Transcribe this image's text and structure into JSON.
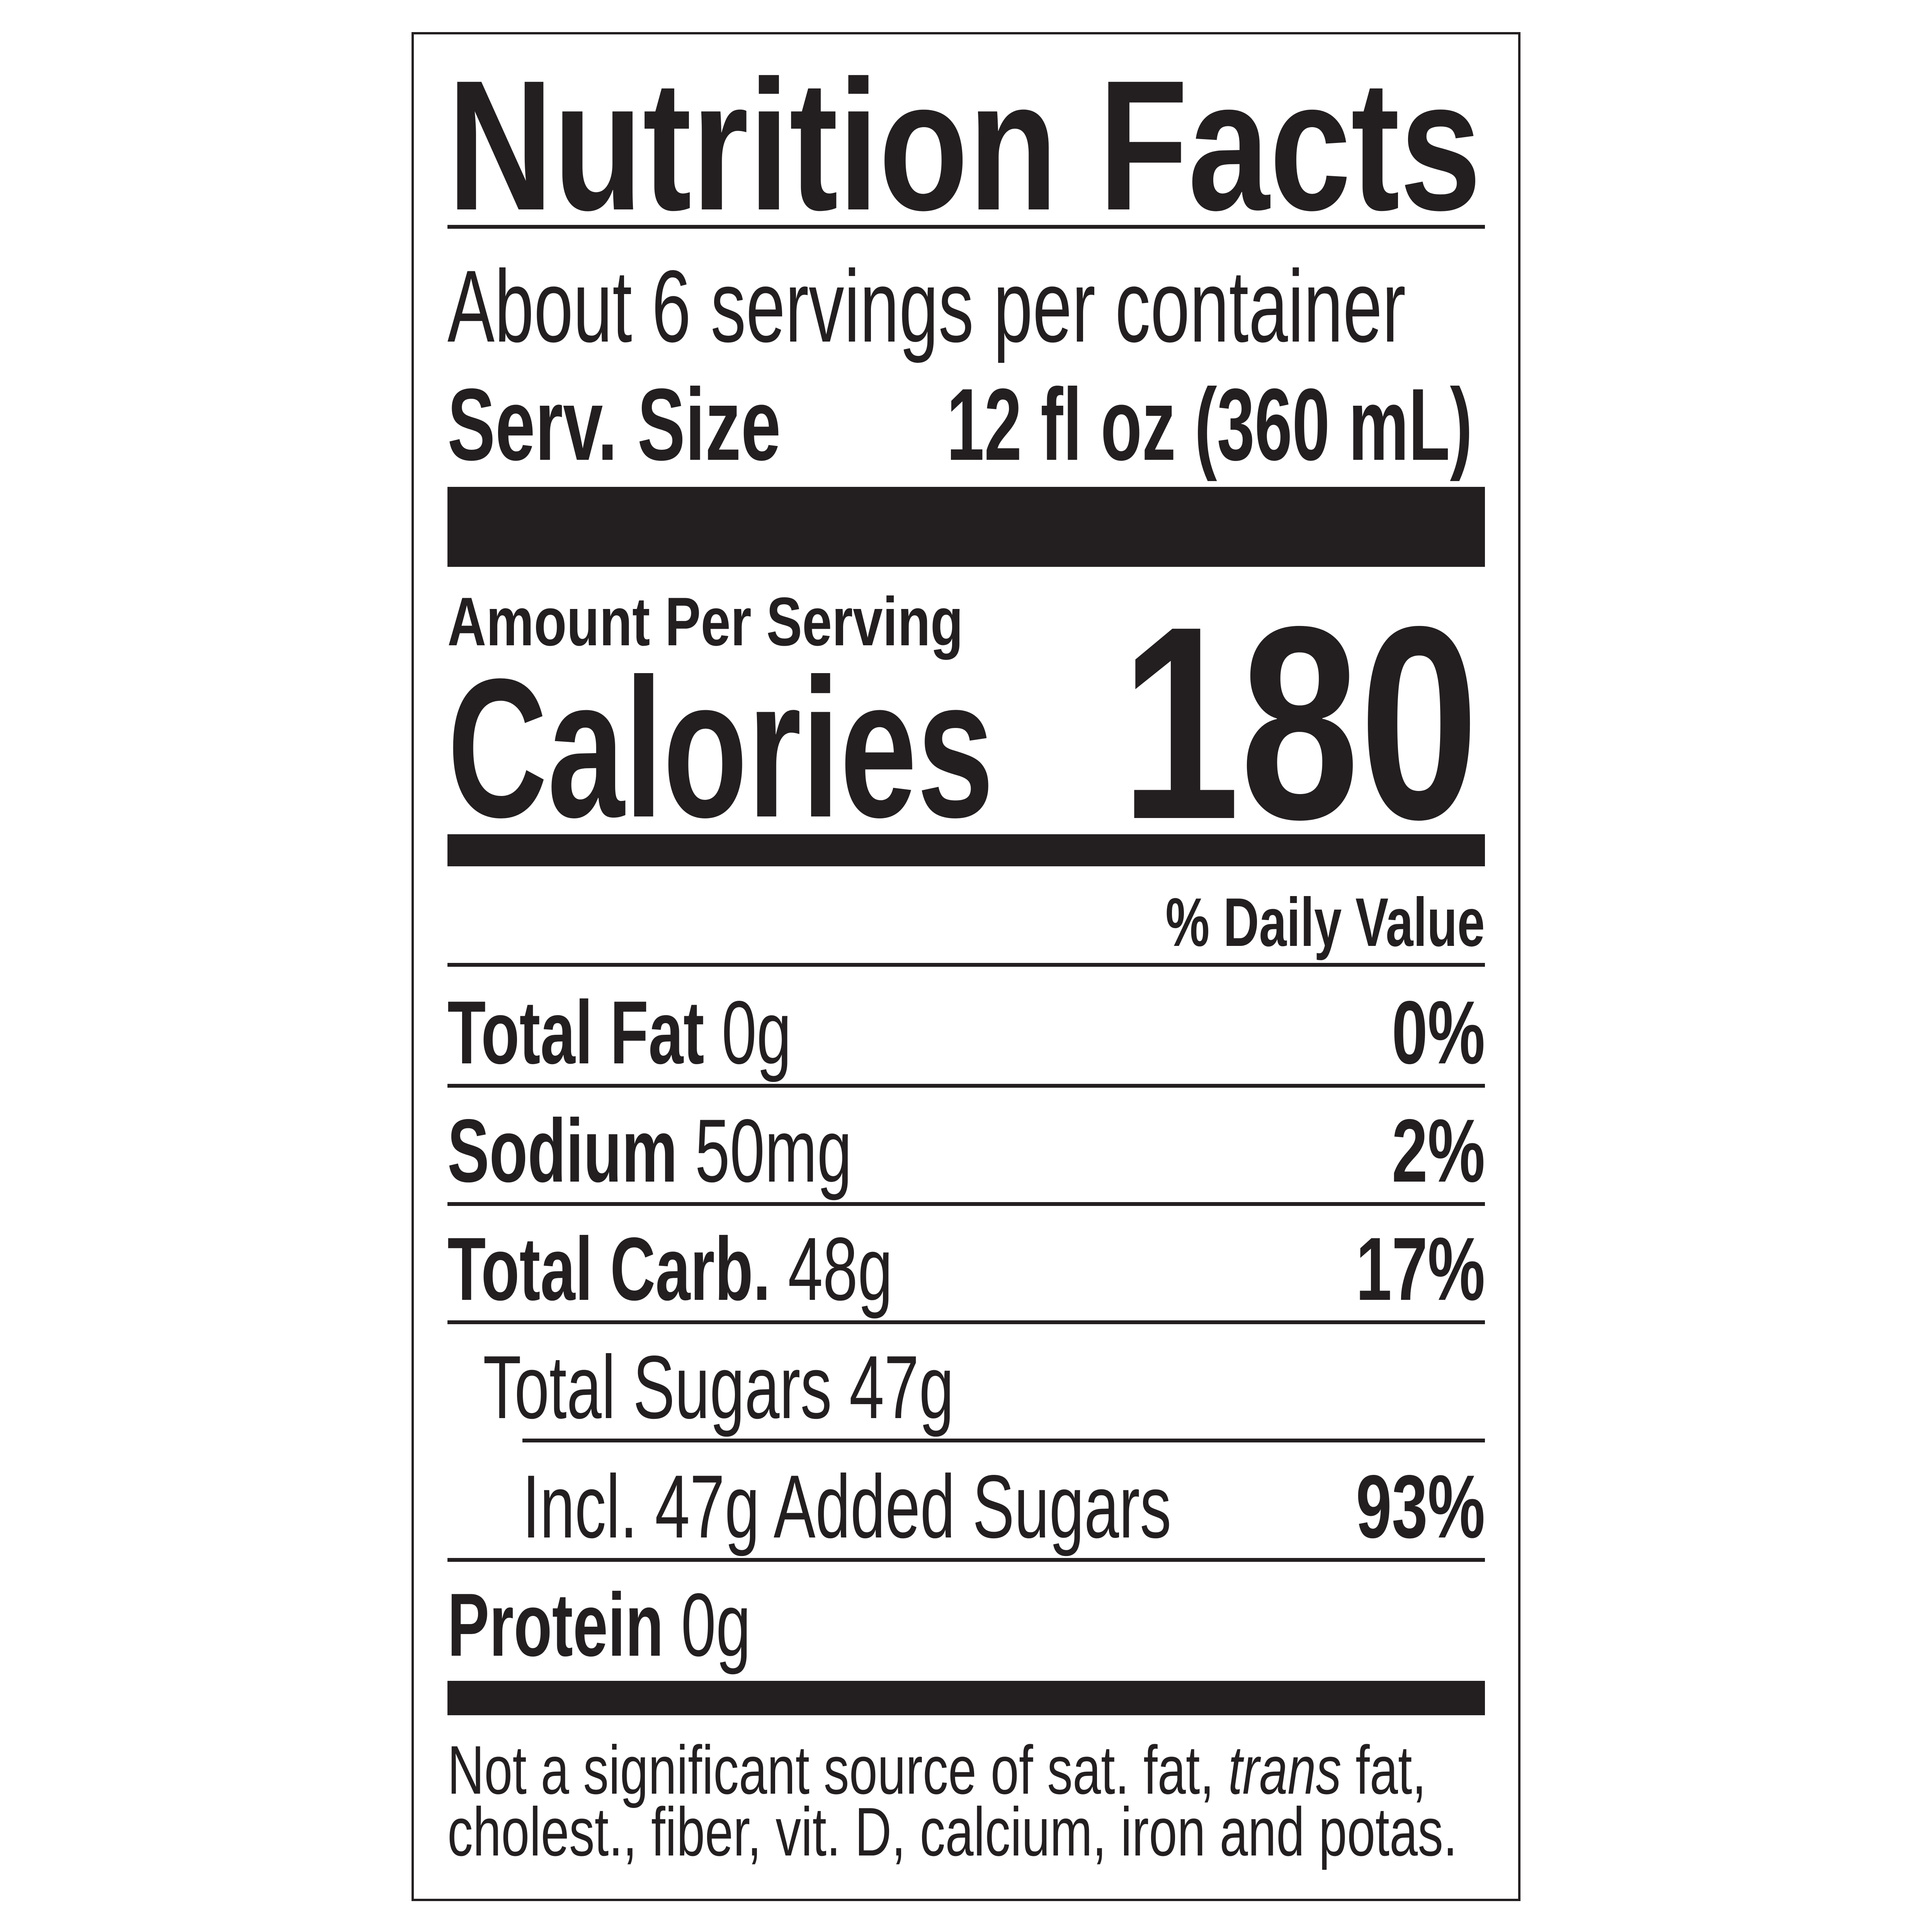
{
  "title": "Nutrition Facts",
  "servings_per_container": "About 6 servings per container",
  "serving_size": {
    "label": "Serv. Size",
    "value": "12 fl oz (360 mL)"
  },
  "amount_per_serving": "Amount Per Serving",
  "calories": {
    "label": "Calories",
    "value": "180"
  },
  "daily_value_header": "% Daily Value",
  "nutrients": [
    {
      "name": "Total Fat",
      "amount": "0g",
      "dv": "0%"
    },
    {
      "name": "Sodium",
      "amount": "50mg",
      "dv": "2%"
    },
    {
      "name": "Total Carb.",
      "amount": "48g",
      "dv": "17%"
    },
    {
      "name": "Total Sugars 47g"
    },
    {
      "name": "Incl. 47g Added Sugars",
      "dv": "93%"
    },
    {
      "name": "Protein",
      "amount": "0g"
    }
  ],
  "footnote": {
    "line1_a": "Not a significant source of sat. fat, ",
    "line1_italic": "trans",
    "line1_b": " fat,",
    "line2": "cholest., fiber, vit. D, calcium, iron and potas."
  }
}
